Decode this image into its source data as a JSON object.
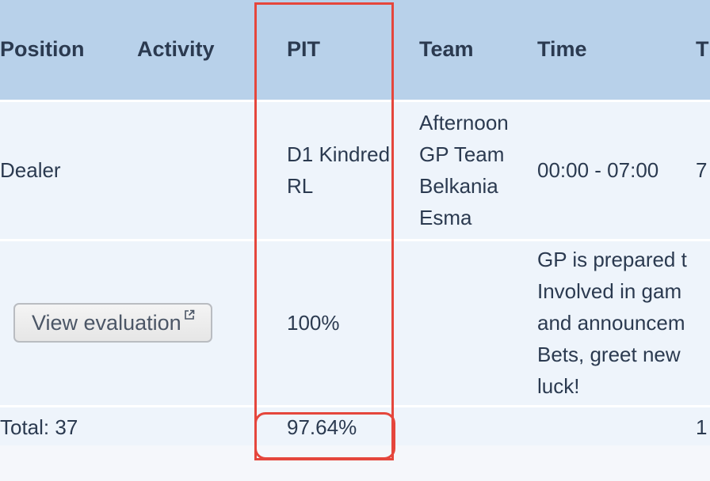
{
  "table": {
    "headers": {
      "position": "Position",
      "activity": "Activity",
      "pit": "PIT",
      "team": "Team",
      "time": "Time",
      "extra": "T"
    },
    "rows": [
      {
        "position": "Dealer",
        "activity": "",
        "pit_lines": [
          "D1 Kindred",
          "RL"
        ],
        "team_lines": [
          "Afternoon",
          "GP Team",
          "Belkania",
          "Esma"
        ],
        "time": "00:00 - 07:00",
        "extra": "7"
      },
      {
        "button_label": "View evaluation",
        "pit": "100%",
        "comment_lines": [
          "GP is prepared t",
          "Involved in gam",
          "and announcem",
          "Bets, greet new",
          "luck!"
        ]
      }
    ],
    "total": {
      "label": "Total: 37",
      "pit": "97.64%",
      "extra": "1"
    }
  },
  "icons": {
    "external_link": "external-link-icon"
  },
  "colors": {
    "header_bg": "#b8d1ea",
    "row_bg": "#eef4fb",
    "highlight": "#e5463c"
  }
}
